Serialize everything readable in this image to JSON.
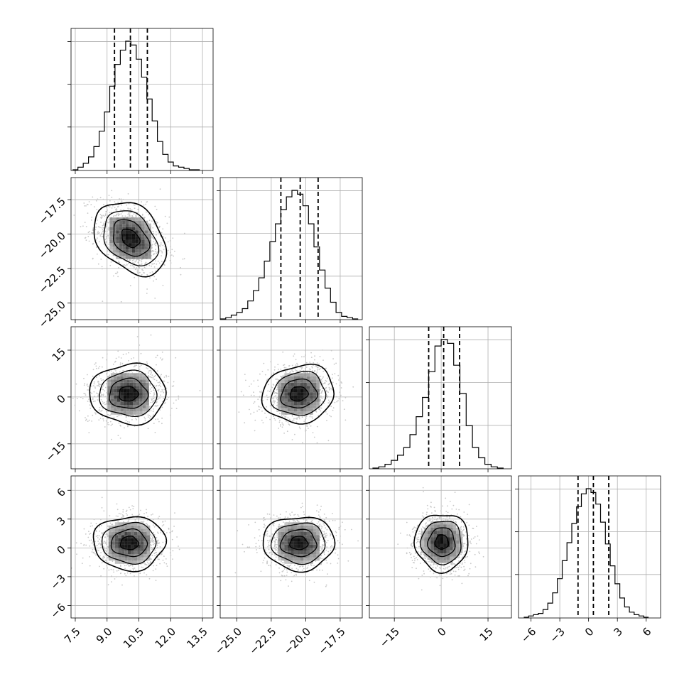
{
  "chart_data": {
    "type": "corner",
    "parameters": [
      {
        "ticks": [
          7.5,
          9.0,
          10.5,
          12.0,
          13.5
        ],
        "tick_labels": [
          "7.5",
          "9.0",
          "10.5",
          "12.0",
          "13.5"
        ],
        "range": [
          7.3,
          14.0
        ],
        "quantiles": [
          9.35,
          10.1,
          10.9
        ],
        "hist_peak": 1.0
      },
      {
        "ticks": [
          -25.0,
          -22.5,
          -20.0,
          -17.5
        ],
        "tick_labels": [
          "−25.0",
          "−22.5",
          "−20.0",
          "−17.5"
        ],
        "range": [
          -26.2,
          -15.9
        ],
        "quantiles": [
          -21.8,
          -20.4,
          -19.1
        ],
        "hist_peak": 1.0
      },
      {
        "ticks": [
          -15,
          0,
          15
        ],
        "tick_labels": [
          "−15",
          "0",
          "15"
        ],
        "range": [
          -23.0,
          22.5
        ],
        "quantiles": [
          -4.0,
          0.8,
          5.9
        ],
        "hist_peak": 1.0
      },
      {
        "ticks": [
          -6,
          -3,
          0,
          3,
          6
        ],
        "tick_labels": [
          "−6",
          "−3",
          "0",
          "3",
          "6"
        ],
        "range": [
          -7.3,
          7.5
        ],
        "quantiles": [
          -1.1,
          0.5,
          2.1
        ],
        "hist_peak": 1.0
      }
    ],
    "histograms": [
      {
        "x": [
          7.5,
          7.75,
          8.0,
          8.25,
          8.5,
          8.75,
          9.0,
          9.25,
          9.5,
          9.75,
          10.0,
          10.25,
          10.5,
          10.75,
          11.0,
          11.25,
          11.5,
          11.75,
          12.0,
          12.25,
          12.5,
          12.75,
          13.0,
          13.25
        ],
        "counts": [
          0.0,
          0.02,
          0.05,
          0.1,
          0.18,
          0.3,
          0.45,
          0.65,
          0.82,
          0.93,
          1.0,
          0.97,
          0.86,
          0.72,
          0.55,
          0.38,
          0.22,
          0.12,
          0.06,
          0.03,
          0.02,
          0.01,
          0.0,
          0.0
        ]
      },
      {
        "x": [
          -26.0,
          -25.6,
          -25.2,
          -24.8,
          -24.4,
          -24.0,
          -23.6,
          -23.2,
          -22.8,
          -22.4,
          -22.0,
          -21.6,
          -21.2,
          -20.8,
          -20.4,
          -20.0,
          -19.6,
          -19.2,
          -18.8,
          -18.4,
          -18.0,
          -17.6,
          -17.2,
          -16.8,
          -16.4
        ],
        "counts": [
          0.0,
          0.01,
          0.03,
          0.05,
          0.08,
          0.14,
          0.22,
          0.32,
          0.45,
          0.6,
          0.74,
          0.85,
          0.95,
          1.0,
          0.97,
          0.88,
          0.74,
          0.56,
          0.38,
          0.24,
          0.13,
          0.05,
          0.02,
          0.01,
          0.0
        ]
      },
      {
        "x": [
          -21.0,
          -19.0,
          -17.0,
          -15.0,
          -13.0,
          -11.0,
          -9.0,
          -7.0,
          -5.0,
          -3.0,
          -1.0,
          1.0,
          3.0,
          5.0,
          7.0,
          9.0,
          11.0,
          13.0,
          15.0,
          17.0,
          19.0
        ],
        "counts": [
          0.0,
          0.01,
          0.03,
          0.06,
          0.1,
          0.16,
          0.26,
          0.4,
          0.55,
          0.75,
          0.95,
          1.0,
          0.97,
          0.8,
          0.58,
          0.33,
          0.16,
          0.08,
          0.03,
          0.01,
          0.0
        ]
      },
      {
        "x": [
          -6.5,
          -6.0,
          -5.5,
          -5.0,
          -4.5,
          -4.0,
          -3.5,
          -3.0,
          -2.5,
          -2.0,
          -1.5,
          -1.0,
          -0.5,
          0.0,
          0.5,
          1.0,
          1.5,
          2.0,
          2.5,
          3.0,
          3.5,
          4.0,
          4.5,
          5.0,
          5.5,
          6.0
        ],
        "counts": [
          0.0,
          0.01,
          0.02,
          0.03,
          0.06,
          0.11,
          0.19,
          0.3,
          0.44,
          0.58,
          0.73,
          0.86,
          0.96,
          1.0,
          0.97,
          0.88,
          0.74,
          0.57,
          0.4,
          0.26,
          0.15,
          0.08,
          0.04,
          0.02,
          0.01,
          0.0
        ]
      }
    ],
    "joint": [
      {
        "row": 1,
        "col": 0,
        "mean": [
          10.1,
          -20.3
        ],
        "sd": [
          0.85,
          1.25
        ],
        "tilt": -0.35
      },
      {
        "row": 2,
        "col": 0,
        "mean": [
          10.0,
          1.0
        ],
        "sd": [
          0.9,
          4.8
        ],
        "tilt": 0.0
      },
      {
        "row": 2,
        "col": 1,
        "mean": [
          -20.5,
          1.0
        ],
        "sd": [
          1.3,
          4.6
        ],
        "tilt": 0.1
      },
      {
        "row": 3,
        "col": 0,
        "mean": [
          10.05,
          0.5
        ],
        "sd": [
          0.85,
          1.4
        ],
        "tilt": 0.0
      },
      {
        "row": 3,
        "col": 1,
        "mean": [
          -20.5,
          0.5
        ],
        "sd": [
          1.3,
          1.4
        ],
        "tilt": 0.0
      },
      {
        "row": 3,
        "col": 2,
        "mean": [
          0.2,
          0.6
        ],
        "sd": [
          4.3,
          1.5
        ],
        "tilt": 0.0
      }
    ],
    "contour_levels_sigma": [
      0.5,
      1.0,
      1.5,
      2.0
    ],
    "grid": true,
    "colors": {
      "line": "#000000",
      "grid": "#b0b0b0",
      "scatter": "#c8c8c8"
    }
  }
}
